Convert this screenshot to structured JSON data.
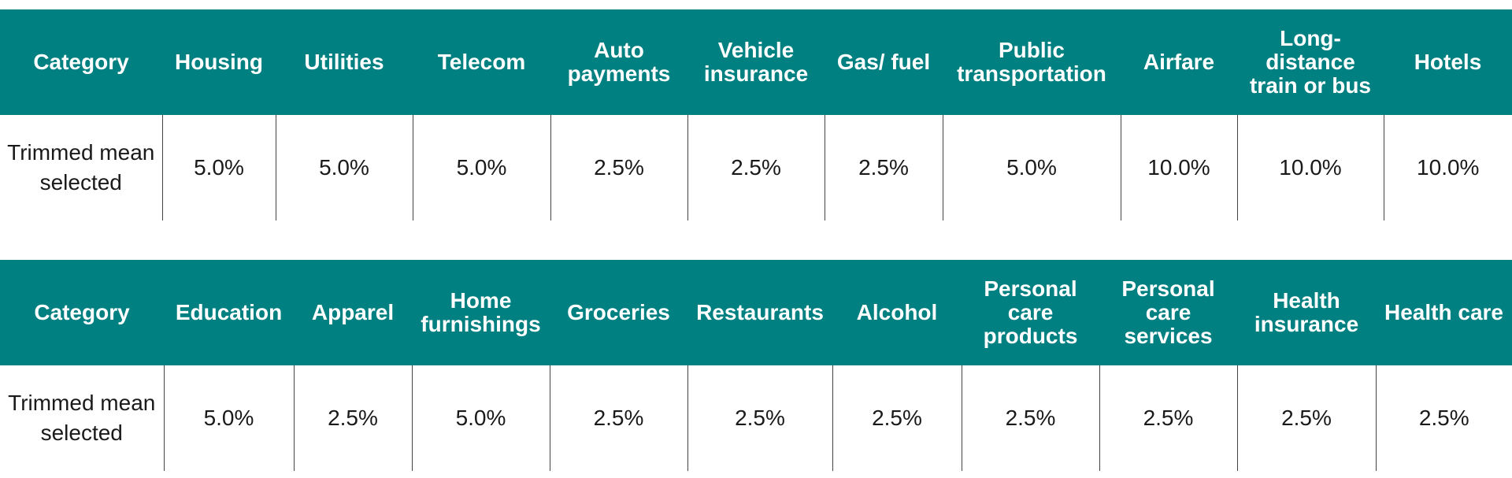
{
  "table_1": {
    "headers": [
      "Category",
      "Housing",
      "Utilities",
      "Telecom",
      "Auto payments",
      "Vehicle insurance",
      "Gas/ fuel",
      "Public transportation",
      "Airfare",
      "Long-distance train or bus",
      "Hotels"
    ],
    "row_label": "Trimmed mean selected",
    "values": [
      "5.0%",
      "5.0%",
      "5.0%",
      "2.5%",
      "2.5%",
      "2.5%",
      "5.0%",
      "10.0%",
      "10.0%",
      "10.0%"
    ]
  },
  "table_2": {
    "headers": [
      "Category",
      "Education",
      "Apparel",
      "Home furnishings",
      "Groceries",
      "Restaurants",
      "Alcohol",
      "Personal care products",
      "Personal care services",
      "Health insurance",
      "Health care"
    ],
    "row_label": "Trimmed mean selected",
    "values": [
      "5.0%",
      "2.5%",
      "5.0%",
      "2.5%",
      "2.5%",
      "2.5%",
      "2.5%",
      "2.5%",
      "2.5%",
      "2.5%"
    ]
  },
  "colors": {
    "header_background": "#008080",
    "header_text": "#ffffff",
    "body_text": "#1a1a1a"
  }
}
